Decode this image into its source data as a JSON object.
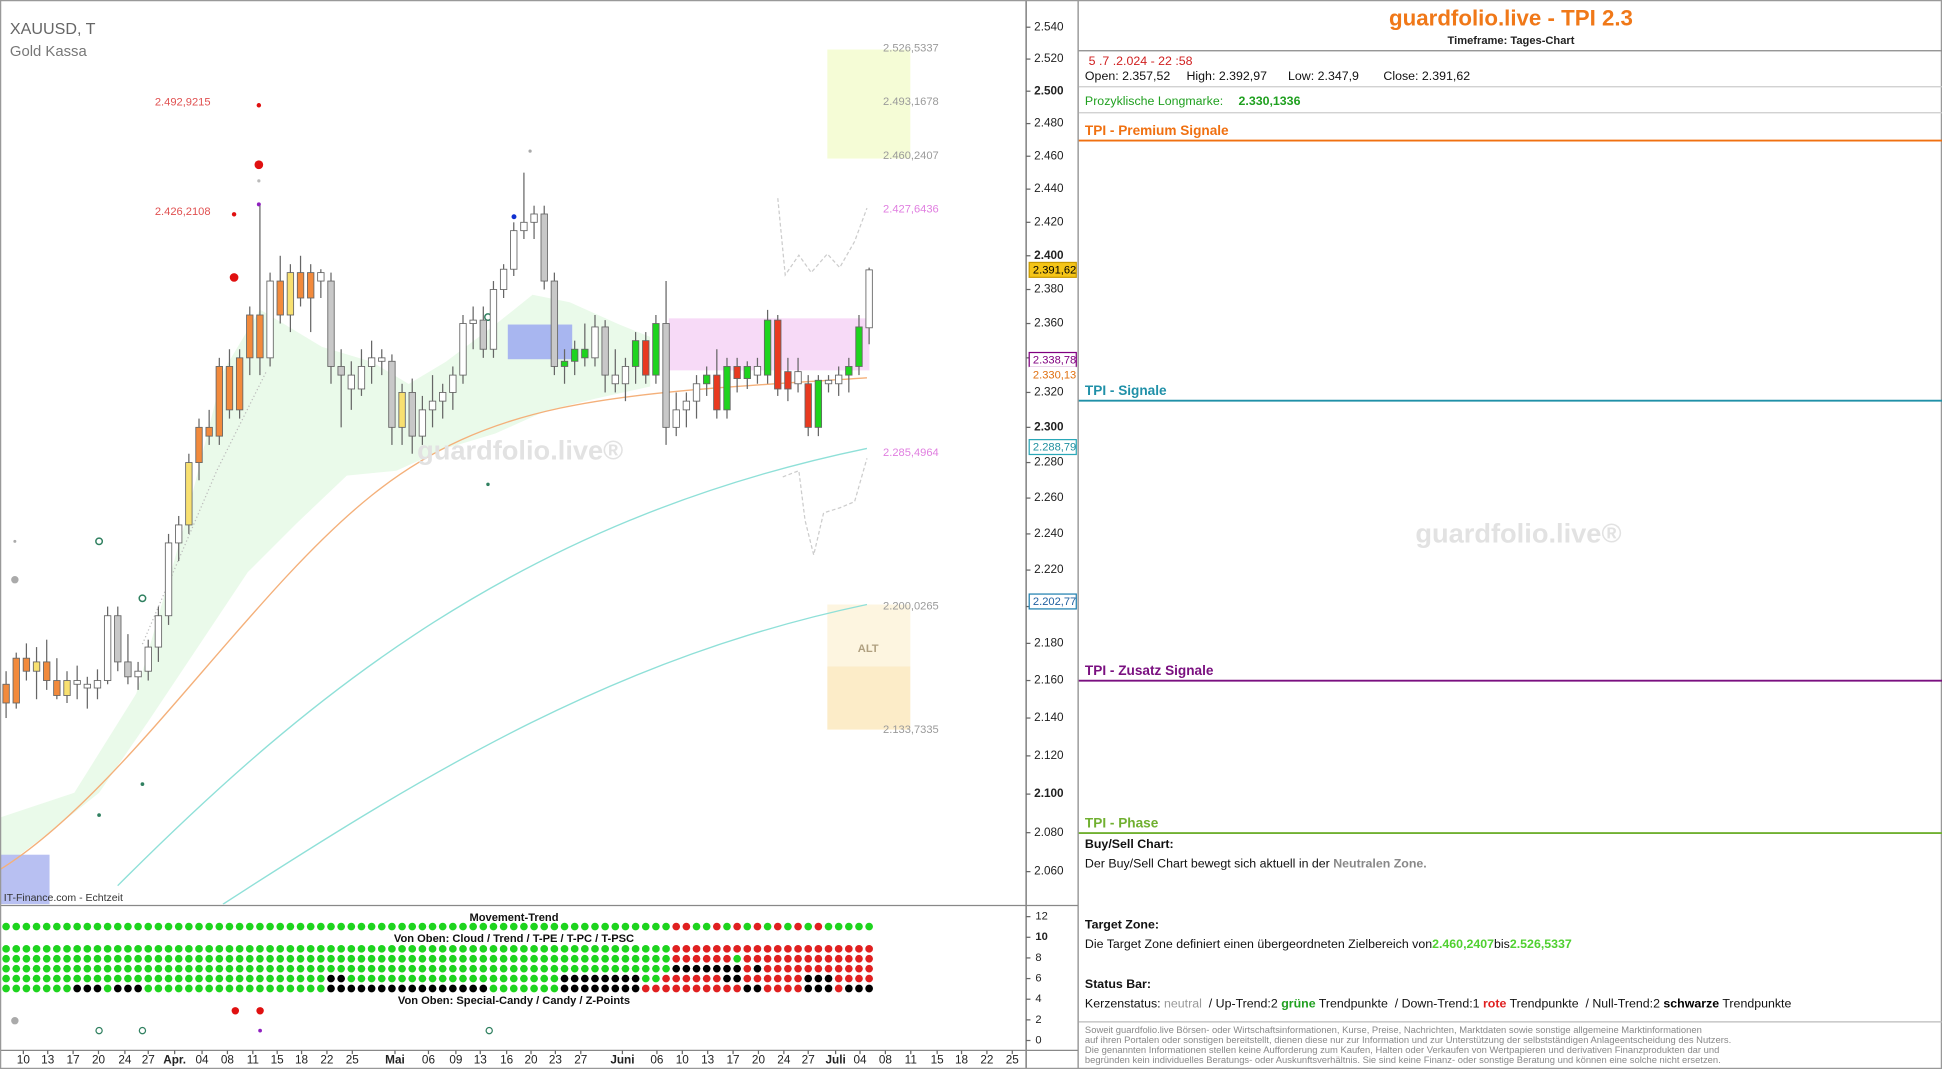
{
  "chart_data": {
    "type": "candlestick",
    "title": "XAUUSD, T",
    "subtitle": "Gold Kassa",
    "source": "IT-Finance.com - Echtzeit",
    "watermark": "guardfolio.live®",
    "zone_label": "ALT",
    "log_scale": true,
    "ylim": [
      2043.4,
      2557.2
    ],
    "yticks": [
      {
        "value": 2060,
        "label": "2.060"
      },
      {
        "value": 2080,
        "label": "2.080"
      },
      {
        "value": 2100,
        "label": "2.100"
      },
      {
        "value": 2120,
        "label": "2.120"
      },
      {
        "value": 2140,
        "label": "2.140"
      },
      {
        "value": 2160,
        "label": "2.160"
      },
      {
        "value": 2180,
        "label": "2.180"
      },
      {
        "value": 2200,
        "label": "2.200"
      },
      {
        "value": 2220,
        "label": "2.220"
      },
      {
        "value": 2240,
        "label": "2.240"
      },
      {
        "value": 2260,
        "label": "2.260"
      },
      {
        "value": 2280,
        "label": "2.280"
      },
      {
        "value": 2300,
        "label": "2.300"
      },
      {
        "value": 2320,
        "label": "2.320"
      },
      {
        "value": 2340,
        "label": "2.340"
      },
      {
        "value": 2360,
        "label": "2.360"
      },
      {
        "value": 2380,
        "label": "2.380"
      },
      {
        "value": 2400,
        "label": "2.400"
      },
      {
        "value": 2420,
        "label": "2.420"
      },
      {
        "value": 2440,
        "label": "2.440"
      },
      {
        "value": 2460,
        "label": "2.460"
      },
      {
        "value": 2480,
        "label": "2.480"
      },
      {
        "value": 2500,
        "label": "2.500"
      },
      {
        "value": 2520,
        "label": "2.520"
      },
      {
        "value": 2540,
        "label": "2.540"
      }
    ],
    "xlim": [
      -0.6,
      100.4
    ],
    "xticks": [
      {
        "value": 1.7,
        "label": "10"
      },
      {
        "value": 4.1,
        "label": "13"
      },
      {
        "value": 6.6,
        "label": "17"
      },
      {
        "value": 9.1,
        "label": "20"
      },
      {
        "value": 11.7,
        "label": "24"
      },
      {
        "value": 14.0,
        "label": "27"
      },
      {
        "value": 16.6,
        "label": "Apr."
      },
      {
        "value": 19.3,
        "label": "04"
      },
      {
        "value": 21.8,
        "label": "08"
      },
      {
        "value": 24.3,
        "label": "11"
      },
      {
        "value": 26.7,
        "label": "15"
      },
      {
        "value": 29.1,
        "label": "18"
      },
      {
        "value": 31.6,
        "label": "22"
      },
      {
        "value": 34.1,
        "label": "25"
      },
      {
        "value": 38.3,
        "label": "Mai"
      },
      {
        "value": 41.6,
        "label": "06"
      },
      {
        "value": 44.3,
        "label": "09"
      },
      {
        "value": 46.7,
        "label": "13"
      },
      {
        "value": 49.3,
        "label": "16"
      },
      {
        "value": 51.7,
        "label": "20"
      },
      {
        "value": 54.1,
        "label": "23"
      },
      {
        "value": 56.6,
        "label": "27"
      },
      {
        "value": 60.7,
        "label": "Juni"
      },
      {
        "value": 64.1,
        "label": "06"
      },
      {
        "value": 66.6,
        "label": "10"
      },
      {
        "value": 69.1,
        "label": "13"
      },
      {
        "value": 71.6,
        "label": "17"
      },
      {
        "value": 74.1,
        "label": "20"
      },
      {
        "value": 76.6,
        "label": "24"
      },
      {
        "value": 79.0,
        "label": "27"
      },
      {
        "value": 81.7,
        "label": "Juli"
      },
      {
        "value": 84.1,
        "label": "04"
      },
      {
        "value": 86.6,
        "label": "08"
      },
      {
        "value": 89.1,
        "label": "11"
      },
      {
        "value": 91.7,
        "label": "15"
      },
      {
        "value": 94.1,
        "label": "18"
      },
      {
        "value": 96.6,
        "label": "22"
      },
      {
        "value": 99.1,
        "label": "25"
      }
    ],
    "palette": {
      "o": "#f28a3c",
      "y": "#f8e070",
      "w": "#ffffff",
      "k": "#c8c8c8",
      "g": "#1ed41e",
      "r": "#e83a20"
    },
    "candles": [
      [
        2158,
        2165,
        2140,
        2148,
        "o"
      ],
      [
        2148,
        2175,
        2145,
        2172,
        "o"
      ],
      [
        2172,
        2180,
        2160,
        2165,
        "o"
      ],
      [
        2165,
        2178,
        2150,
        2170,
        "y"
      ],
      [
        2170,
        2182,
        2155,
        2160,
        "o"
      ],
      [
        2160,
        2172,
        2150,
        2152,
        "o"
      ],
      [
        2152,
        2165,
        2148,
        2160,
        "y"
      ],
      [
        2160,
        2168,
        2150,
        2158,
        "w"
      ],
      [
        2158,
        2162,
        2145,
        2156,
        "w"
      ],
      [
        2156,
        2166,
        2150,
        2160,
        "w"
      ],
      [
        2160,
        2200,
        2158,
        2195,
        "w"
      ],
      [
        2195,
        2200,
        2165,
        2170,
        "k"
      ],
      [
        2170,
        2185,
        2158,
        2162,
        "k"
      ],
      [
        2162,
        2170,
        2155,
        2165,
        "w"
      ],
      [
        2165,
        2182,
        2160,
        2178,
        "w"
      ],
      [
        2178,
        2200,
        2170,
        2195,
        "w"
      ],
      [
        2195,
        2240,
        2190,
        2235,
        "w"
      ],
      [
        2235,
        2250,
        2225,
        2245,
        "w"
      ],
      [
        2245,
        2285,
        2240,
        2280,
        "y"
      ],
      [
        2280,
        2305,
        2270,
        2300,
        "o"
      ],
      [
        2300,
        2310,
        2290,
        2295,
        "o"
      ],
      [
        2295,
        2340,
        2290,
        2335,
        "o"
      ],
      [
        2335,
        2345,
        2305,
        2310,
        "o"
      ],
      [
        2310,
        2345,
        2305,
        2340,
        "o"
      ],
      [
        2340,
        2370,
        2330,
        2365,
        "o"
      ],
      [
        2365,
        2430,
        2330,
        2340,
        "o"
      ],
      [
        2340,
        2390,
        2335,
        2385,
        "w"
      ],
      [
        2385,
        2400,
        2360,
        2365,
        "o"
      ],
      [
        2365,
        2395,
        2355,
        2390,
        "y"
      ],
      [
        2390,
        2400,
        2370,
        2375,
        "o"
      ],
      [
        2375,
        2395,
        2355,
        2390,
        "o"
      ],
      [
        2390,
        2392,
        2375,
        2385,
        "w"
      ],
      [
        2385,
        2390,
        2325,
        2335,
        "k"
      ],
      [
        2335,
        2345,
        2300,
        2330,
        "k"
      ],
      [
        2330,
        2338,
        2310,
        2322,
        "w"
      ],
      [
        2322,
        2345,
        2318,
        2335,
        "w"
      ],
      [
        2335,
        2350,
        2325,
        2340,
        "w"
      ],
      [
        2340,
        2345,
        2330,
        2338,
        "w"
      ],
      [
        2338,
        2342,
        2290,
        2300,
        "k"
      ],
      [
        2300,
        2325,
        2290,
        2320,
        "y"
      ],
      [
        2320,
        2328,
        2285,
        2295,
        "k"
      ],
      [
        2295,
        2318,
        2290,
        2310,
        "w"
      ],
      [
        2310,
        2330,
        2300,
        2315,
        "w"
      ],
      [
        2315,
        2325,
        2305,
        2320,
        "w"
      ],
      [
        2320,
        2335,
        2310,
        2330,
        "w"
      ],
      [
        2330,
        2365,
        2325,
        2360,
        "w"
      ],
      [
        2360,
        2370,
        2345,
        2362,
        "w"
      ],
      [
        2362,
        2370,
        2340,
        2345,
        "k"
      ],
      [
        2345,
        2385,
        2340,
        2380,
        "w"
      ],
      [
        2380,
        2395,
        2375,
        2392,
        "w"
      ],
      [
        2392,
        2420,
        2388,
        2415,
        "w"
      ],
      [
        2415,
        2450,
        2410,
        2420,
        "w"
      ],
      [
        2420,
        2430,
        2410,
        2425,
        "w"
      ],
      [
        2425,
        2430,
        2380,
        2385,
        "k"
      ],
      [
        2385,
        2390,
        2330,
        2335,
        "k"
      ],
      [
        2335,
        2345,
        2325,
        2338,
        "g"
      ],
      [
        2338,
        2350,
        2330,
        2345,
        "g"
      ],
      [
        2345,
        2360,
        2335,
        2340,
        "g"
      ],
      [
        2340,
        2365,
        2335,
        2358,
        "w"
      ],
      [
        2358,
        2362,
        2320,
        2330,
        "k"
      ],
      [
        2330,
        2345,
        2320,
        2325,
        "w"
      ],
      [
        2325,
        2340,
        2315,
        2335,
        "w"
      ],
      [
        2335,
        2355,
        2325,
        2350,
        "g"
      ],
      [
        2350,
        2355,
        2325,
        2330,
        "r"
      ],
      [
        2330,
        2365,
        2325,
        2360,
        "g"
      ],
      [
        2360,
        2385,
        2290,
        2300,
        "k"
      ],
      [
        2300,
        2320,
        2295,
        2310,
        "w"
      ],
      [
        2310,
        2320,
        2300,
        2315,
        "w"
      ],
      [
        2315,
        2330,
        2305,
        2325,
        "w"
      ],
      [
        2325,
        2335,
        2318,
        2330,
        "g"
      ],
      [
        2330,
        2345,
        2305,
        2310,
        "r"
      ],
      [
        2310,
        2340,
        2305,
        2335,
        "g"
      ],
      [
        2335,
        2340,
        2320,
        2328,
        "r"
      ],
      [
        2328,
        2338,
        2322,
        2335,
        "g"
      ],
      [
        2335,
        2340,
        2325,
        2330,
        "w"
      ],
      [
        2330,
        2368,
        2325,
        2362,
        "g"
      ],
      [
        2362,
        2365,
        2318,
        2322,
        "r"
      ],
      [
        2322,
        2340,
        2315,
        2332,
        "r"
      ],
      [
        2332,
        2340,
        2320,
        2325,
        "w"
      ],
      [
        2325,
        2330,
        2295,
        2300,
        "r"
      ],
      [
        2300,
        2330,
        2295,
        2327,
        "g"
      ],
      [
        2327,
        2330,
        2320,
        2325,
        "w"
      ],
      [
        2325,
        2335,
        2318,
        2330,
        "w"
      ],
      [
        2330,
        2340,
        2320,
        2335,
        "g"
      ],
      [
        2335,
        2365,
        2330,
        2358,
        "g"
      ],
      [
        2357.52,
        2392.97,
        2347.9,
        2391.62,
        "w"
      ]
    ],
    "levels": [
      {
        "value": 2526.5337,
        "label": "2.526,5337",
        "color": "#9a9a9a",
        "side": "right"
      },
      {
        "value": 2493.1678,
        "label": "2.493,1678",
        "color": "#9a9a9a",
        "side": "right"
      },
      {
        "value": 2460.2407,
        "label": "2.460,2407",
        "color": "#9a9a9a",
        "side": "right"
      },
      {
        "value": 2427.6436,
        "label": "2.427,6436",
        "color": "#e07ee0",
        "side": "right"
      },
      {
        "value": 2285.4964,
        "label": "2.285,4964",
        "color": "#e07ee0",
        "side": "right"
      },
      {
        "value": 2200.0265,
        "label": "2.200,0265",
        "color": "#9a9a9a",
        "side": "right"
      },
      {
        "value": 2133.7335,
        "label": "2.133,7335",
        "color": "#9a9a9a",
        "side": "right"
      },
      {
        "value": 2492.9215,
        "label": "2.492,9215",
        "color": "#e05050",
        "side": "left"
      },
      {
        "value": 2426.2108,
        "label": "2.426,2108",
        "color": "#e05050",
        "side": "left"
      }
    ],
    "price_boxes": [
      {
        "value": 2391.62,
        "label": "2.391,62",
        "color": "#000000",
        "fill": "#f5c518",
        "stroke": "#c89a00"
      },
      {
        "value": 2338.78,
        "label": "2.338,78",
        "color": "#800080",
        "fill": "#ffffff",
        "stroke": "#800080"
      },
      {
        "value": 2330.13,
        "label": "2.330,13",
        "color": "#e07010",
        "fill": "#ffffff",
        "stroke": "#ffffff"
      },
      {
        "value": 2288.79,
        "label": "2.288,79",
        "color": "#2090a0",
        "fill": "#ffffff",
        "stroke": "#2aa8b8"
      },
      {
        "value": 2202.77,
        "label": "2.202,77",
        "color": "#2060a0",
        "fill": "#ffffff",
        "stroke": "#2080b0"
      }
    ]
  },
  "indicator": {
    "labels": [
      "Movement-Trend",
      "Von Oben: Cloud / Trend / T-PE / T-PC / T-PSC",
      "Von Oben: Special-Candy / Candy / Z-Points"
    ],
    "ylim": [
      -0.96,
      12.84
    ],
    "yticks": [
      12,
      10,
      8,
      6,
      4,
      2,
      0
    ],
    "palette": {
      "g": "#1ed41e",
      "r": "#e02020",
      "k": "#000000"
    },
    "rows": [
      "ggggggggggggggggggggggggggggggggggggggggggggggggggggggggggggggggggrrggrgrgrgrgrgrggggg",
      "ggggggggggggggggggggggggggggggggggggggggggggggggggggggggggggggggggrrrrrrrrrrrrrrrrrrrr",
      "ggggggggggggggggggggggggggggggggggggggggggggggggggggggggggggggggggrrrrrrgrrrrrrrrrrrrr",
      "ggggggggggggggggggggggggggggggggggggggggggggggggggggggggggggggggggkkkkkkkrkrrrrrrrrrrr",
      "ggggggggggggggggggggggggggggggggkkgggggggggggggggggggggkkkkkkkkggrrrrrrkkrrrrrrkkkrrrr",
      "gggggggkkkgkkkggggggggggggggggggkkkkkkkkkkkkkkkkgggggggkkkkkkkkrrrrrrrrrrkkrrrrkkkrkkk"
    ]
  },
  "panel": {
    "title": "guardfolio.live - TPI 2.3",
    "timeframe": "Timeframe: Tages-Chart",
    "datetime": "5 .7 .2.024  - 22 :58",
    "open": "Open: 2.357,52",
    "high": "High: 2.392,97",
    "low": "Low:   2.347,9",
    "close": "Close: 2.391,62",
    "longmark_label": "Prozyklische Longmarke:",
    "longmark_value": "2.330,1336",
    "sections": [
      "TPI - Premium Signale",
      "TPI - Signale",
      "TPI - Zusatz Signale",
      "TPI - Phase"
    ],
    "buysell_heading": "Buy/Sell Chart:",
    "buysell_text": "Der Buy/Sell Chart bewegt sich aktuell in der ",
    "buysell_zone": "Neutralen Zone.",
    "target_heading": "Target Zone:",
    "target_text": "Die Target Zone definiert einen übergeordneten Zielbereich von",
    "target_from": "2.460,2407",
    "target_to_word": "bis",
    "target_to": "2.526,5337",
    "status_heading": "Status Bar:",
    "status": [
      "Kerzenstatus: ",
      "neutral",
      "  / Up-Trend:2 ",
      "grüne",
      " Trendpunkte  / Down-Trend:1 ",
      "rote",
      " Trendpunkte  / Null-Trend:2 ",
      "schwarze",
      " Trendpunkte"
    ],
    "watermark": "guardfolio.live®",
    "disclaimer": [
      "Soweit guardfolio.live Börsen- oder Wirtschaftsinformationen, Kurse, Preise, Nachrichten, Marktdaten sowie sonstige allgemeine Marktinformationen",
      "auf ihren Portalen oder sonstigen bereitstellt, dienen diese nur zur Information und zur Unterstützung der selbstständigen Anlageentscheidung des Nutzers.",
      "Die genannten Informationen stellen keine Aufforderung zum Kaufen, Halten oder Verkaufen von Wertpapieren und derivativen Finanzprodukten dar und",
      "begründen kein individuelles Beratungs- oder Auskunftsverhältnis. Sie sind keine Finanz- oder sonstige Beratung und können eine solche nicht ersetzen."
    ]
  }
}
